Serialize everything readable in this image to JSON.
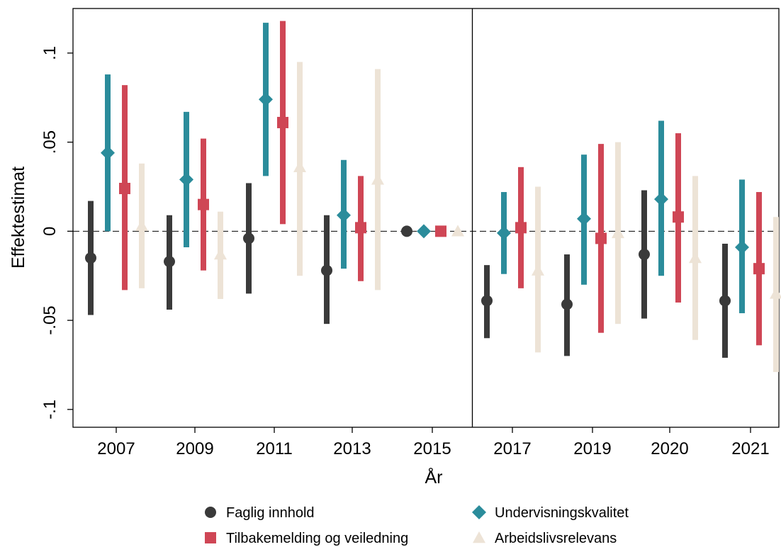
{
  "chart_data": {
    "type": "scatter",
    "title": "",
    "xlabel": "År",
    "ylabel": "Effektestimat",
    "categories": [
      "2007",
      "2009",
      "2011",
      "2013",
      "2015",
      "2017",
      "2019",
      "2020",
      "2021"
    ],
    "ylim": [
      -0.11,
      0.125
    ],
    "yticks": [
      {
        "value": 0.1,
        "label": ".1"
      },
      {
        "value": 0.05,
        "label": ".05"
      },
      {
        "value": 0,
        "label": "0"
      },
      {
        "value": -0.05,
        "label": "-.05"
      },
      {
        "value": -0.1,
        "label": "-.1"
      }
    ],
    "reference_line_y": 0,
    "vertical_divider_after": "2015",
    "grid": false,
    "legend_position": "bottom",
    "series": [
      {
        "name": "Faglig innhold",
        "color": "#3a3a3a",
        "marker": "circle",
        "values": [
          -0.015,
          -0.017,
          -0.004,
          -0.022,
          0.0,
          -0.039,
          -0.041,
          -0.013,
          -0.039
        ],
        "ci_low": [
          -0.047,
          -0.044,
          -0.035,
          -0.052,
          null,
          -0.06,
          -0.07,
          -0.049,
          -0.071
        ],
        "ci_high": [
          0.017,
          0.009,
          0.027,
          0.009,
          null,
          -0.019,
          -0.013,
          0.023,
          -0.007
        ]
      },
      {
        "name": "Undervisningskvalitet",
        "color": "#2b8c9b",
        "marker": "diamond",
        "values": [
          0.044,
          0.029,
          0.074,
          0.009,
          0.0,
          -0.001,
          0.007,
          0.018,
          -0.009
        ],
        "ci_low": [
          0.0,
          -0.009,
          0.031,
          -0.021,
          null,
          -0.024,
          -0.03,
          -0.025,
          -0.046
        ],
        "ci_high": [
          0.088,
          0.067,
          0.117,
          0.04,
          null,
          0.022,
          0.043,
          0.062,
          0.029
        ]
      },
      {
        "name": "Tilbakemelding og veiledning",
        "color": "#cf4655",
        "marker": "square",
        "values": [
          0.024,
          0.015,
          0.061,
          0.002,
          0.0,
          0.002,
          -0.004,
          0.008,
          -0.021
        ],
        "ci_low": [
          -0.033,
          -0.022,
          0.004,
          -0.028,
          null,
          -0.032,
          -0.057,
          -0.04,
          -0.064
        ],
        "ci_high": [
          0.082,
          0.052,
          0.118,
          0.031,
          null,
          0.036,
          0.049,
          0.055,
          0.022
        ]
      },
      {
        "name": "Arbeidslivsrelevans",
        "color": "#ede3d6",
        "marker": "triangle",
        "values": [
          0.003,
          -0.013,
          0.036,
          0.029,
          0.0,
          -0.022,
          -0.001,
          -0.015,
          -0.035
        ],
        "ci_low": [
          -0.032,
          -0.038,
          -0.025,
          -0.033,
          null,
          -0.068,
          -0.052,
          -0.061,
          -0.079
        ],
        "ci_high": [
          0.038,
          0.011,
          0.095,
          0.091,
          null,
          0.025,
          0.05,
          0.031,
          0.008
        ]
      }
    ]
  }
}
